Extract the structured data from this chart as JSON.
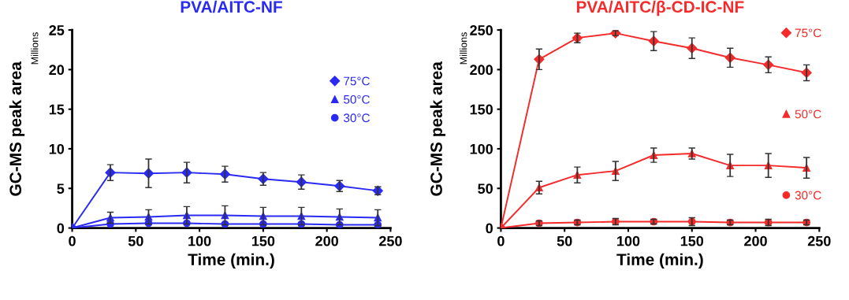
{
  "chart_data": [
    {
      "type": "line",
      "title": "PVA/AITC-NF",
      "xlabel": "Time (min.)",
      "ylabel": "GC-MS peak area",
      "annotations": [
        "Millions"
      ],
      "x": [
        0,
        30,
        60,
        90,
        120,
        150,
        180,
        210,
        240
      ],
      "xlim": [
        0,
        250
      ],
      "xticks": [
        0,
        50,
        100,
        150,
        200,
        250
      ],
      "ylim": [
        0,
        25
      ],
      "yticks": [
        0,
        5,
        10,
        15,
        20,
        25
      ],
      "legend": "top right",
      "series": [
        {
          "name": "75°C",
          "color": "#2a2af5",
          "marker": "diamond",
          "values": [
            0,
            7.0,
            6.9,
            7.0,
            6.8,
            6.2,
            5.8,
            5.3,
            4.7
          ],
          "errors": [
            null,
            1.0,
            1.8,
            1.3,
            1.0,
            0.8,
            0.9,
            0.7,
            0.5
          ]
        },
        {
          "name": "50°C",
          "color": "#2a2af5",
          "marker": "triangle",
          "values": [
            0,
            1.3,
            1.4,
            1.6,
            1.6,
            1.5,
            1.5,
            1.4,
            1.3
          ],
          "errors": [
            null,
            0.7,
            0.9,
            1.1,
            1.2,
            1.1,
            1.1,
            1.0,
            1.0
          ]
        },
        {
          "name": "30°C",
          "color": "#2a2af5",
          "marker": "circle",
          "values": [
            0,
            0.5,
            0.6,
            0.6,
            0.5,
            0.5,
            0.5,
            0.4,
            0.4
          ]
        }
      ]
    },
    {
      "type": "line",
      "title": "PVA/AITC/β-CD-IC-NF",
      "xlabel": "Time (min.)",
      "ylabel": "GC-MS peak area",
      "annotations": [
        "Millions"
      ],
      "x": [
        0,
        30,
        60,
        90,
        120,
        150,
        180,
        210,
        240
      ],
      "xlim": [
        0,
        250
      ],
      "xticks": [
        0,
        50,
        100,
        150,
        200,
        250
      ],
      "ylim": [
        0,
        250
      ],
      "yticks": [
        0,
        50,
        100,
        150,
        200,
        250
      ],
      "legend": "right",
      "series": [
        {
          "name": "75°C",
          "color": "#f52a2a",
          "marker": "diamond",
          "values": [
            0,
            213,
            240,
            246,
            236,
            227,
            215,
            206,
            196
          ],
          "errors": [
            null,
            13,
            6,
            3,
            12,
            13,
            12,
            10,
            10
          ]
        },
        {
          "name": "50°C",
          "color": "#f52a2a",
          "marker": "triangle",
          "values": [
            0,
            51,
            67,
            72,
            92,
            94,
            79,
            79,
            76
          ],
          "errors": [
            null,
            8,
            10,
            12,
            9,
            7,
            14,
            15,
            13
          ]
        },
        {
          "name": "30°C",
          "color": "#f52a2a",
          "marker": "circle",
          "values": [
            0,
            6,
            7,
            8,
            8,
            8,
            7,
            7,
            7
          ],
          "errors": [
            null,
            3,
            3,
            4,
            3,
            5,
            3,
            4,
            3
          ]
        }
      ]
    }
  ]
}
